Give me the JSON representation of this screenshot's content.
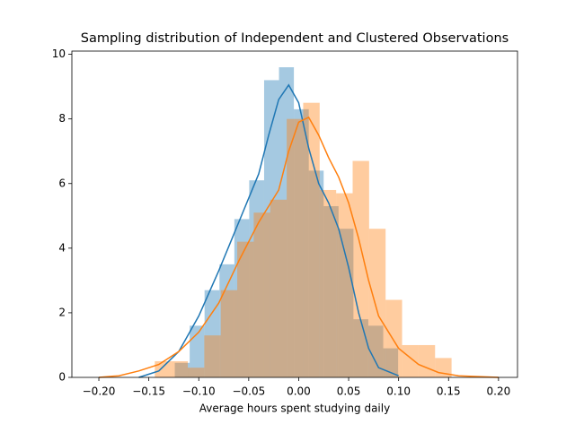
{
  "chart_data": {
    "type": "histogram",
    "title": "Sampling distribution of Independent and Clustered Observations",
    "xlabel": "Average hours spent studying daily",
    "xlim": [
      -0.227,
      0.219
    ],
    "ylim": [
      0,
      10.1
    ],
    "xticks": [
      {
        "value": -0.2,
        "label": "−0.20"
      },
      {
        "value": -0.15,
        "label": "−0.15"
      },
      {
        "value": -0.1,
        "label": "−0.10"
      },
      {
        "value": -0.05,
        "label": "−0.05"
      },
      {
        "value": 0,
        "label": "0.00"
      },
      {
        "value": 0.05,
        "label": "0.05"
      },
      {
        "value": 0.1,
        "label": "0.10"
      },
      {
        "value": 0.15,
        "label": "0.15"
      },
      {
        "value": 0.2,
        "label": "0.20"
      }
    ],
    "yticks": [
      0,
      2,
      4,
      6,
      8,
      10
    ],
    "series": [
      {
        "color": "#1f77b4",
        "bins": [
          -0.124,
          -0.1091,
          -0.0942,
          -0.0793,
          -0.0644,
          -0.0495,
          -0.0346,
          -0.0197,
          -0.0048,
          0.0101,
          0.025,
          0.0399,
          0.0548,
          0.0697,
          0.0846,
          0.0995
        ],
        "values": [
          0.45,
          1.6,
          2.7,
          3.5,
          4.9,
          6.1,
          9.2,
          9.6,
          8.3,
          6.4,
          5.3,
          4.6,
          1.8,
          1.6,
          0.9
        ],
        "kde": {
          "x": [
            -0.16,
            -0.14,
            -0.12,
            -0.1,
            -0.08,
            -0.06,
            -0.04,
            -0.03,
            -0.02,
            -0.01,
            0,
            0.01,
            0.02,
            0.03,
            0.04,
            0.05,
            0.06,
            0.07,
            0.08,
            0.1
          ],
          "y": [
            0,
            0.2,
            0.8,
            1.9,
            3.3,
            4.8,
            6.3,
            7.5,
            8.6,
            9.05,
            8.5,
            7.1,
            6.0,
            5.4,
            4.6,
            3.4,
            2.0,
            0.9,
            0.3,
            0.05
          ]
        }
      },
      {
        "color": "#ff7f0e",
        "bins": [
          -0.144,
          -0.1275,
          -0.111,
          -0.0945,
          -0.078,
          -0.0615,
          -0.045,
          -0.0285,
          -0.012,
          0.0045,
          0.021,
          0.0375,
          0.054,
          0.0705,
          0.087,
          0.1035,
          0.12,
          0.1365,
          0.153
        ],
        "values": [
          0.5,
          0.5,
          0.3,
          1.3,
          2.7,
          4.2,
          5.1,
          5.5,
          8.0,
          8.5,
          5.8,
          5.7,
          6.7,
          4.6,
          2.4,
          1.0,
          1.0,
          0.6
        ],
        "kde": {
          "x": [
            -0.2,
            -0.18,
            -0.16,
            -0.14,
            -0.12,
            -0.1,
            -0.08,
            -0.06,
            -0.04,
            -0.02,
            -0.01,
            0,
            0.01,
            0.02,
            0.03,
            0.04,
            0.05,
            0.06,
            0.07,
            0.08,
            0.1,
            0.12,
            0.14,
            0.16,
            0.2
          ],
          "y": [
            0,
            0.05,
            0.2,
            0.4,
            0.8,
            1.4,
            2.3,
            3.6,
            4.8,
            5.8,
            7.0,
            7.9,
            8.05,
            7.5,
            6.8,
            6.2,
            5.4,
            4.3,
            3.0,
            1.9,
            0.9,
            0.4,
            0.15,
            0.05,
            0
          ]
        }
      }
    ]
  }
}
